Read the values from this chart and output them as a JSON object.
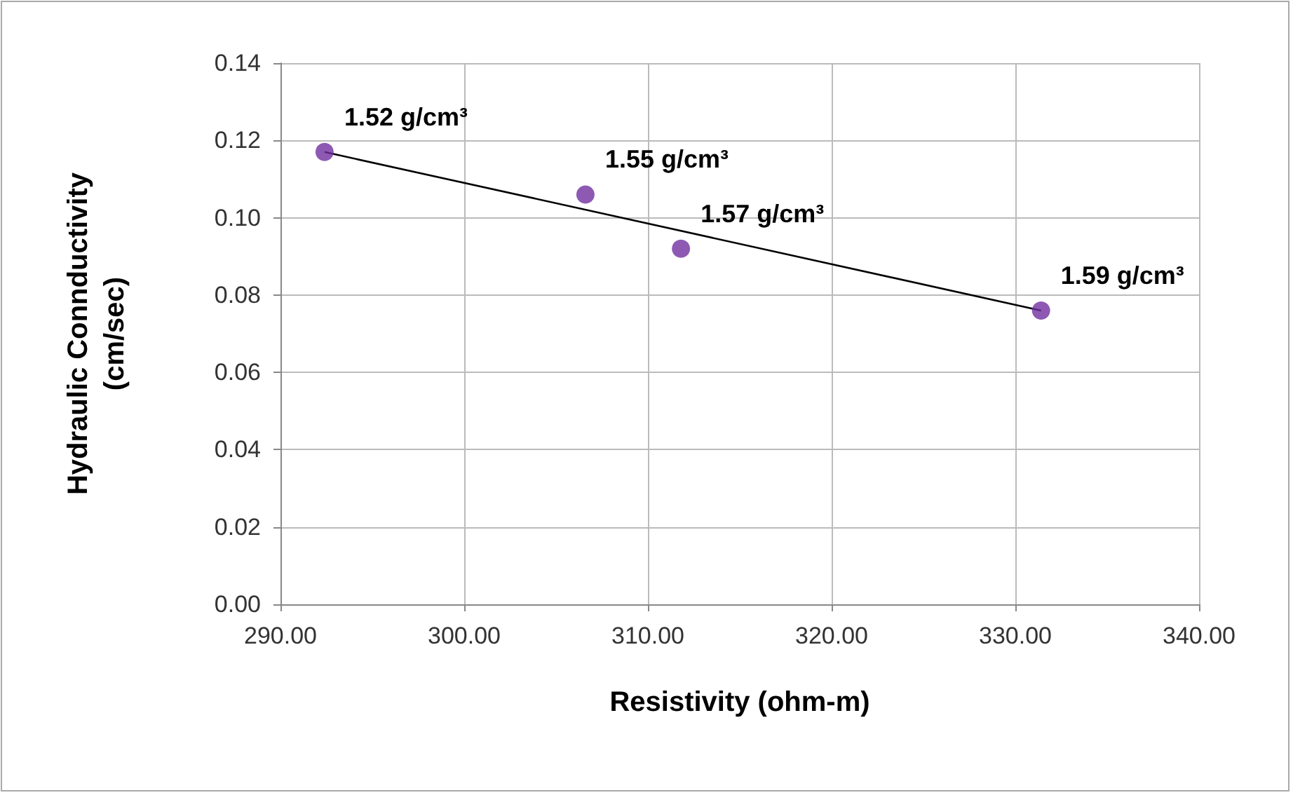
{
  "chart_data": {
    "type": "scatter",
    "xlabel": "Resistivity (ohm-m)",
    "ylabel": "Hydraulic Connductivity\n(cm/sec)",
    "x": [
      292.4,
      306.6,
      311.8,
      331.4
    ],
    "series": [
      {
        "color": "#7030a0",
        "values": [
          0.117,
          0.106,
          0.092,
          0.076
        ]
      },
      {
        "type": "line",
        "color": "#000000",
        "x": [
          292.4,
          331.4
        ],
        "values": [
          0.117,
          0.076
        ],
        "marker": "none"
      }
    ],
    "annotations": [
      {
        "text": "1.52 g/cm³",
        "x": 292.4,
        "y": 0.117
      },
      {
        "text": "1.55 g/cm³",
        "x": 306.6,
        "y": 0.106
      },
      {
        "text": "1.57 g/cm³",
        "x": 311.8,
        "y": 0.092
      },
      {
        "text": "1.59 g/cm³",
        "x": 331.4,
        "y": 0.076
      }
    ],
    "xlim": [
      290,
      340
    ],
    "xticks": [
      {
        "value": 290,
        "label": "290.00"
      },
      {
        "value": 300,
        "label": "300.00"
      },
      {
        "value": 310,
        "label": "310.00"
      },
      {
        "value": 320,
        "label": "320.00"
      },
      {
        "value": 330,
        "label": "330.00"
      },
      {
        "value": 340,
        "label": "340.00"
      }
    ],
    "ylim": [
      0,
      0.14
    ],
    "yticks": [
      {
        "value": 0,
        "label": "0.00"
      },
      {
        "value": 0.02,
        "label": "0.02"
      },
      {
        "value": 0.04,
        "label": "0.04"
      },
      {
        "value": 0.06,
        "label": "0.06"
      },
      {
        "value": 0.08,
        "label": "0.08"
      },
      {
        "value": 0.1,
        "label": "0.10"
      },
      {
        "value": 0.12,
        "label": "0.12"
      },
      {
        "value": 0.14,
        "label": "0.14"
      }
    ],
    "grid": true,
    "marker": "circle"
  }
}
